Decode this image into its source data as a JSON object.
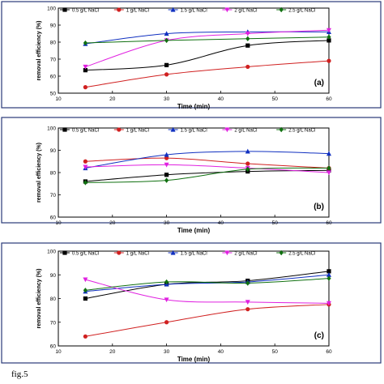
{
  "caption": "fig.5",
  "legend_labels": [
    "0.5 g/L NaCl",
    "1 g/L NaCl",
    "1.5 g/L NaCl",
    "2 g/L NaCl",
    "2.5 g/L NaCl"
  ],
  "colors": {
    "s1": "#000000",
    "s2": "#d02020",
    "s3": "#1030c0",
    "s4": "#e020e0",
    "s5": "#107010",
    "frame": "#2a3a78"
  },
  "chart_data": [
    {
      "type": "line",
      "panel_label": "(a)",
      "xlabel": "Time (min)",
      "ylabel": "removal efficiency (%)",
      "xlim": [
        10,
        60
      ],
      "ylim": [
        50,
        100
      ],
      "xticks": [
        10,
        20,
        30,
        40,
        50,
        60
      ],
      "yticks": [
        50,
        60,
        70,
        80,
        90,
        100
      ],
      "x": [
        15,
        30,
        45,
        60
      ],
      "series": [
        {
          "name": "0.5 g/L NaCl",
          "color": "#000000",
          "marker": "square",
          "values": [
            63.5,
            66.5,
            78,
            81
          ]
        },
        {
          "name": "1 g/L NaCl",
          "color": "#d02020",
          "marker": "circle",
          "values": [
            53.5,
            61,
            65.5,
            69
          ]
        },
        {
          "name": "1.5 g/L NaCl",
          "color": "#1030c0",
          "marker": "triangle",
          "values": [
            79,
            85,
            86,
            86
          ]
        },
        {
          "name": "2 g/L NaCl",
          "color": "#e020e0",
          "marker": "triangle-down",
          "values": [
            65.5,
            81,
            85,
            87
          ]
        },
        {
          "name": "2.5 g/L NaCl",
          "color": "#107010",
          "marker": "diamond",
          "values": [
            79.5,
            81,
            82,
            83
          ]
        }
      ]
    },
    {
      "type": "line",
      "panel_label": "(b)",
      "xlabel": "Time (min)",
      "ylabel": "removal efficiency (%)",
      "xlim": [
        10,
        60
      ],
      "ylim": [
        60,
        100
      ],
      "xticks": [
        10,
        20,
        30,
        40,
        50,
        60
      ],
      "yticks": [
        60,
        70,
        80,
        90,
        100
      ],
      "x": [
        15,
        30,
        45,
        60
      ],
      "series": [
        {
          "name": "0.5 g/L NaCl",
          "color": "#000000",
          "marker": "square",
          "values": [
            76,
            79,
            80.5,
            81
          ]
        },
        {
          "name": "1 g/L NaCl",
          "color": "#d02020",
          "marker": "circle",
          "values": [
            85,
            86.5,
            84,
            82
          ]
        },
        {
          "name": "1.5 g/L NaCl",
          "color": "#1030c0",
          "marker": "triangle",
          "values": [
            82,
            88,
            89.5,
            88.5
          ]
        },
        {
          "name": "2 g/L NaCl",
          "color": "#e020e0",
          "marker": "triangle-down",
          "values": [
            82.5,
            83.5,
            82,
            80
          ]
        },
        {
          "name": "2.5 g/L NaCl",
          "color": "#107010",
          "marker": "diamond",
          "values": [
            75.5,
            76.5,
            81.5,
            82
          ]
        }
      ]
    },
    {
      "type": "line",
      "panel_label": "(c)",
      "xlabel": "Time (min)",
      "ylabel": "removal efficiency (%)",
      "xlim": [
        10,
        60
      ],
      "ylim": [
        60,
        100
      ],
      "xticks": [
        10,
        20,
        30,
        40,
        50,
        60
      ],
      "yticks": [
        60,
        70,
        80,
        90,
        100
      ],
      "x": [
        15,
        30,
        45,
        60
      ],
      "series": [
        {
          "name": "0.5 g/L NaCl",
          "color": "#000000",
          "marker": "square",
          "values": [
            80,
            86,
            87.5,
            91.5
          ]
        },
        {
          "name": "1 g/L NaCl",
          "color": "#d02020",
          "marker": "circle",
          "values": [
            64,
            70,
            75.5,
            77.5
          ]
        },
        {
          "name": "1.5 g/L NaCl",
          "color": "#1030c0",
          "marker": "triangle",
          "values": [
            83,
            86,
            87,
            90
          ]
        },
        {
          "name": "2 g/L NaCl",
          "color": "#e020e0",
          "marker": "triangle-down",
          "values": [
            88,
            79.5,
            78.5,
            78
          ]
        },
        {
          "name": "2.5 g/L NaCl",
          "color": "#107010",
          "marker": "diamond",
          "values": [
            83.5,
            87,
            86.5,
            88.5
          ]
        }
      ]
    }
  ]
}
